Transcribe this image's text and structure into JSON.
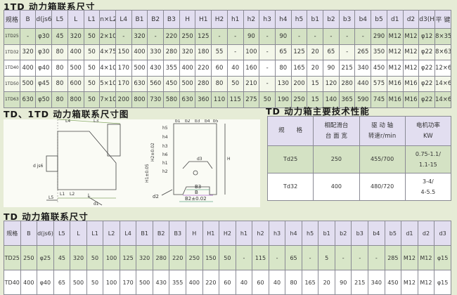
{
  "section1": {
    "title": "1TD 动力箱联系尺寸",
    "headers": [
      "规格",
      "B",
      "d(js6)",
      "L5",
      "L",
      "L1",
      "n×L2",
      "L4",
      "B1",
      "B2",
      "B3",
      "H",
      "H1",
      "H2",
      "h1",
      "h2",
      "h3",
      "h4",
      "h5",
      "b1",
      "b2",
      "b3",
      "b4",
      "b5",
      "d1",
      "d2",
      "d3(H7)",
      "平 键"
    ],
    "rows": [
      [
        "1TD25",
        "-",
        "φ30",
        "45",
        "320",
        "50",
        "2×100",
        "-",
        "320",
        "-",
        "220",
        "250",
        "125",
        "-",
        "-",
        "90",
        "-",
        "90",
        "-",
        "-",
        "-",
        "-",
        "-",
        "290",
        "M12",
        "M12",
        "φ12",
        "8×35"
      ],
      [
        "1TD32",
        "320",
        "φ30",
        "80",
        "400",
        "50",
        "4×75",
        "150",
        "400",
        "330",
        "280",
        "320",
        "180",
        "55",
        "-",
        "100",
        "-",
        "65",
        "125",
        "20",
        "65",
        "-",
        "265",
        "350",
        "M12",
        "M12",
        "φ22",
        "8×63"
      ],
      [
        "1TD40",
        "400",
        "φ40",
        "80",
        "500",
        "50",
        "4×100",
        "170",
        "500",
        "430",
        "355",
        "400",
        "220",
        "60",
        "40",
        "160",
        "-",
        "80",
        "165",
        "20",
        "90",
        "215",
        "340",
        "450",
        "M12",
        "M12",
        "φ22",
        "12×63"
      ],
      [
        "1TD50",
        "500",
        "φ45",
        "80",
        "600",
        "50",
        "5×100",
        "170",
        "630",
        "560",
        "450",
        "500",
        "280",
        "80",
        "50",
        "210",
        "-",
        "130",
        "200",
        "15",
        "120",
        "280",
        "440",
        "575",
        "M16",
        "M16",
        "φ22",
        "14×63"
      ],
      [
        "1TD63",
        "630",
        "φ50",
        "80",
        "800",
        "50",
        "7×100",
        "200",
        "800",
        "730",
        "580",
        "630",
        "360",
        "110",
        "115",
        "275",
        "50",
        "190",
        "250",
        "15",
        "140",
        "365",
        "590",
        "745",
        "M16",
        "M16",
        "φ22",
        "14×63"
      ]
    ]
  },
  "diagram": {
    "title": "TD、1TD 动力箱联系尺寸图",
    "labels": {
      "L4": "L4",
      "L3": "L3",
      "djs6": "d js6",
      "L5": "L5",
      "L1": "L1",
      "L2": "L2",
      "L": "L",
      "d1": "d1",
      "B1": "B1",
      "b1": "b1",
      "b2": "b2",
      "b3": "b3",
      "b4": "b4",
      "b5": "b5",
      "h5": "h5",
      "h4": "h4",
      "h3": "h3",
      "h6": "h6",
      "h1": "h1",
      "h2": "h2",
      "d3": "d3",
      "H": "H",
      "H1": "H1±0.05",
      "H2": "H2±0.02",
      "B3": "B3",
      "B": "B",
      "B2": "B2±0.02",
      "d2": "d2"
    }
  },
  "performance": {
    "title": "TD 动力箱主要技术性能",
    "headers": [
      [
        "规　　格"
      ],
      [
        "相配滑台",
        "台 面 宽"
      ],
      [
        "驱 动 轴",
        "转速r/min"
      ],
      [
        "电机功率",
        "KW"
      ]
    ],
    "rows": [
      [
        "Td25",
        "250",
        "455/700",
        [
          "0.75-1.1/",
          "1.1-15"
        ]
      ],
      [
        "Td32",
        "400",
        "480/720",
        [
          "3-4/",
          "4-5.5"
        ]
      ]
    ]
  },
  "section3": {
    "title": "TD 动力箱联系尺寸",
    "headers": [
      "规格",
      "B",
      "d(js6)",
      "L5",
      "L",
      "L1",
      "L2",
      "L4",
      "B1",
      "B2",
      "B3",
      "H",
      "H1",
      "H2",
      "h1",
      "h2",
      "h3",
      "h4",
      "h5",
      "b1",
      "b2",
      "b3",
      "b4",
      "b5",
      "d1",
      "d2",
      "d3"
    ],
    "rows": [
      [
        "TD25",
        "250",
        "φ25",
        "45",
        "320",
        "50",
        "100",
        "125",
        "320",
        "280",
        "220",
        "250",
        "150",
        "50",
        "-",
        "115",
        "-",
        "65",
        "-",
        "5",
        "-",
        "-",
        "-",
        "285",
        "M12",
        "M12",
        "φ15"
      ],
      [
        "TD40",
        "400",
        "φ40",
        "65",
        "500",
        "50",
        "100",
        "170",
        "500",
        "430",
        "355",
        "400",
        "220",
        "60",
        "40",
        "60",
        "40",
        "80",
        "165",
        "20",
        "90",
        "215",
        "340",
        "450",
        "M12",
        "M12",
        "φ15"
      ]
    ]
  },
  "colors": {
    "background": "#e6ecd6",
    "header": "#e2def0",
    "row_green": "#d4e2c4",
    "row_white": "#ffffff"
  }
}
